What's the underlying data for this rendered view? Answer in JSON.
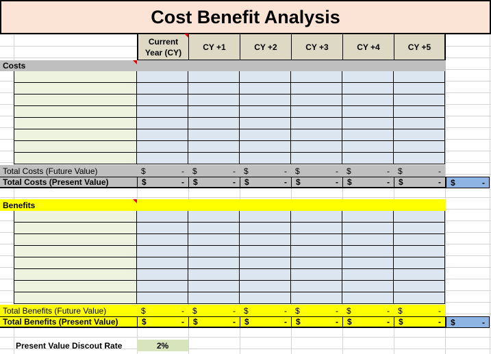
{
  "title": "Cost Benefit Analysis",
  "columns": [
    "Current\nYear (CY)",
    "CY +1",
    "CY +2",
    "CY +3",
    "CY +4",
    "CY +5"
  ],
  "costs": {
    "label": "Costs",
    "total_future_label": "Total Costs (Future Value)",
    "total_present_label": "Total Costs (Present Value)",
    "currency": "$",
    "dash": "-",
    "grand_total_currency": "$",
    "grand_total_value": "-"
  },
  "benefits": {
    "label": "Benefits",
    "total_future_label": "Total Benefits (Future Value)",
    "total_present_label": "Total Benefits (Present Value)",
    "currency": "$",
    "dash": "-",
    "grand_total_currency": "$",
    "grand_total_value": "-"
  },
  "discount": {
    "label": "Present Value Discout Rate",
    "value": "2%"
  },
  "colors": {
    "title_bg": "#fbe4d5",
    "header_bg": "#ddd9c4",
    "costs_bar": "#bfbfbf",
    "benefits_bar": "#ffff00",
    "value_cell": "#dce6f1",
    "input_cell": "#eef3e0",
    "grand_total": "#8db4e2"
  }
}
